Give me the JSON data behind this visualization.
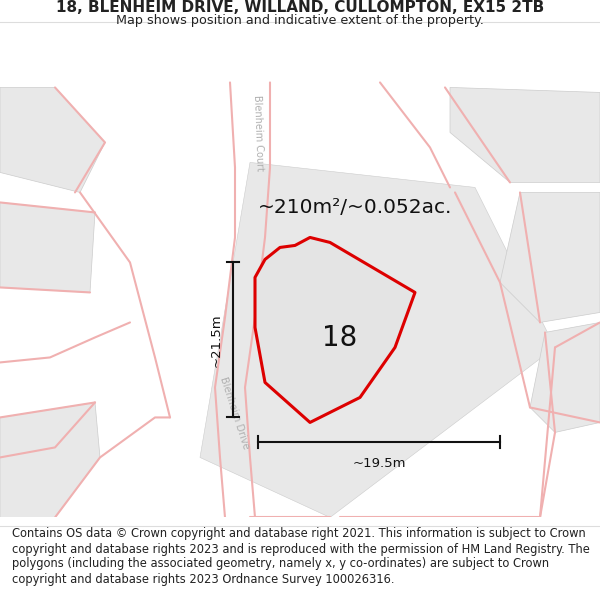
{
  "title_line1": "18, BLENHEIM DRIVE, WILLAND, CULLOMPTON, EX15 2TB",
  "title_line2": "Map shows position and indicative extent of the property.",
  "footer_text": "Contains OS data © Crown copyright and database right 2021. This information is subject to Crown copyright and database rights 2023 and is reproduced with the permission of HM Land Registry. The polygons (including the associated geometry, namely x, y co-ordinates) are subject to Crown copyright and database rights 2023 Ordnance Survey 100026316.",
  "area_label": "~210m²/~0.052ac.",
  "number_label": "18",
  "dim_h_label": "~21.5m",
  "dim_w_label": "~19.5m",
  "map_bg": "#ffffff",
  "block_fill": "#e8e8e8",
  "block_stroke": "#cccccc",
  "road_fill": "#ffffff",
  "road_stroke_light": "#f0c8c8",
  "property_fill": "#e4e4e4",
  "property_stroke": "#dd0000",
  "dim_color": "#111111",
  "label_color": "#cccccc",
  "title_fontsize": 11,
  "footer_fontsize": 8.5
}
